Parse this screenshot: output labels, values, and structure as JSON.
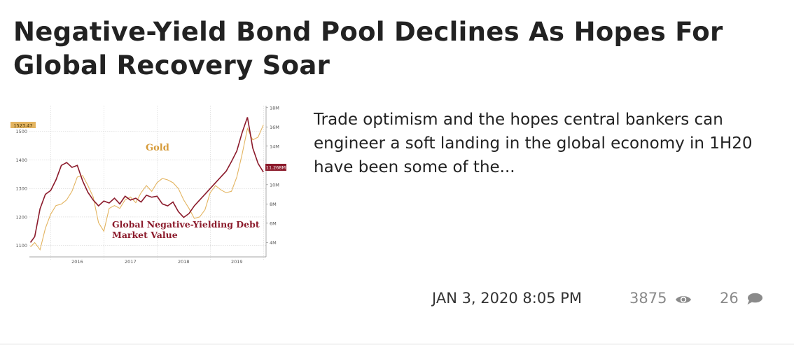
{
  "article": {
    "title": "Negative-Yield Bond Pool Declines As Hopes For Global Recovery Soar",
    "excerpt": "Trade optimism and the hopes central bankers can engineer a soft landing in the global economy in 1H20 have been some of the...",
    "date": "JAN 3, 2020 8:05 PM",
    "views": "3875",
    "comments": "26"
  },
  "icons": {
    "views": "eye-icon",
    "comments": "comment-bubble-icon"
  },
  "colors": {
    "gold": "#e3b460",
    "debt": "#8b1a2b",
    "gold_label": "#d69b3a",
    "text": "#222222",
    "meta_muted": "#8a8a8a"
  },
  "chart_data": {
    "type": "line",
    "x_ticks": [
      "2016",
      "2017",
      "2018",
      "2019"
    ],
    "left_axis": {
      "ticks": [
        "1100",
        "1200",
        "1300",
        "1400",
        "1500"
      ],
      "ylim": [
        1060,
        1590
      ]
    },
    "right_axis": {
      "ticks": [
        "4M",
        "6M",
        "8M",
        "10M",
        "12M",
        "14M",
        "16M",
        "18M"
      ],
      "ylim": [
        2.5,
        18.2
      ]
    },
    "grid": true,
    "last_value_labels": {
      "gold": "1523.47",
      "debt": "11.268M"
    },
    "series": [
      {
        "name": "Gold",
        "axis": "left",
        "x": [
          2015.62,
          2015.7,
          2015.8,
          2015.9,
          2016.0,
          2016.1,
          2016.2,
          2016.3,
          2016.4,
          2016.5,
          2016.6,
          2016.7,
          2016.8,
          2016.9,
          2017.0,
          2017.1,
          2017.2,
          2017.3,
          2017.4,
          2017.5,
          2017.6,
          2017.7,
          2017.8,
          2017.9,
          2018.0,
          2018.1,
          2018.2,
          2018.3,
          2018.4,
          2018.5,
          2018.6,
          2018.7,
          2018.8,
          2018.9,
          2019.0,
          2019.1,
          2019.2,
          2019.3,
          2019.4,
          2019.5,
          2019.6,
          2019.7,
          2019.8,
          2019.9,
          2020.0
        ],
        "values": [
          1095,
          1110,
          1085,
          1160,
          1210,
          1240,
          1245,
          1260,
          1290,
          1340,
          1345,
          1310,
          1270,
          1180,
          1150,
          1230,
          1240,
          1230,
          1260,
          1270,
          1250,
          1285,
          1310,
          1290,
          1320,
          1335,
          1330,
          1320,
          1300,
          1260,
          1230,
          1195,
          1200,
          1225,
          1285,
          1310,
          1295,
          1285,
          1290,
          1340,
          1420,
          1510,
          1470,
          1480,
          1523
        ]
      },
      {
        "name": "Global Negative-Yielding Debt Market Value",
        "axis": "right",
        "x": [
          2015.62,
          2015.7,
          2015.8,
          2015.9,
          2016.0,
          2016.1,
          2016.2,
          2016.3,
          2016.4,
          2016.5,
          2016.6,
          2016.7,
          2016.8,
          2016.9,
          2017.0,
          2017.1,
          2017.2,
          2017.3,
          2017.4,
          2017.5,
          2017.6,
          2017.7,
          2017.8,
          2017.9,
          2018.0,
          2018.1,
          2018.2,
          2018.3,
          2018.4,
          2018.5,
          2018.6,
          2018.7,
          2018.8,
          2018.9,
          2019.0,
          2019.1,
          2019.2,
          2019.3,
          2019.4,
          2019.5,
          2019.6,
          2019.7,
          2019.8,
          2019.9,
          2020.0
        ],
        "values": [
          4.0,
          4.6,
          7.5,
          9.0,
          9.4,
          10.5,
          12.0,
          12.3,
          11.8,
          12.0,
          10.4,
          9.2,
          8.4,
          7.8,
          8.3,
          8.1,
          8.6,
          8.0,
          8.8,
          8.4,
          8.6,
          8.2,
          8.9,
          8.7,
          8.8,
          8.0,
          7.8,
          8.2,
          7.2,
          6.6,
          7.0,
          7.8,
          8.4,
          9.0,
          9.6,
          10.2,
          10.8,
          11.4,
          12.4,
          13.5,
          15.4,
          17.0,
          13.8,
          12.2,
          11.3
        ]
      }
    ],
    "annotations": [
      "Gold",
      "Global Negative-Yielding Debt",
      "Market Value"
    ]
  }
}
